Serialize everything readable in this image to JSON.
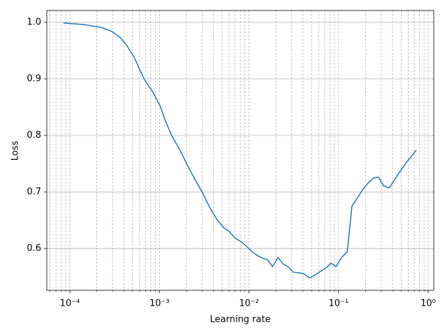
{
  "chart_data": {
    "type": "line",
    "xlabel": "Learning rate",
    "ylabel": "Loss",
    "xscale": "log",
    "x": [
      8.5e-05,
      0.000144,
      0.000225,
      0.000294,
      0.000366,
      0.000437,
      0.000524,
      0.000604,
      0.000685,
      0.000835,
      0.00102,
      0.00117,
      0.00138,
      0.00171,
      0.00212,
      0.00254,
      0.00304,
      0.00363,
      0.00435,
      0.0052,
      0.00601,
      0.00693,
      0.00815,
      0.00924,
      0.0107,
      0.0123,
      0.014,
      0.0161,
      0.0183,
      0.0211,
      0.0239,
      0.0276,
      0.0313,
      0.0361,
      0.041,
      0.0473,
      0.0546,
      0.0619,
      0.0714,
      0.0825,
      0.0935,
      0.108,
      0.125,
      0.141,
      0.163,
      0.188,
      0.214,
      0.247,
      0.28,
      0.317,
      0.366,
      0.423,
      0.488,
      0.563,
      0.65,
      0.738
    ],
    "series": [
      {
        "color": "#1f77b4",
        "values": [
          0.999,
          0.996,
          0.991,
          0.984,
          0.973,
          0.958,
          0.938,
          0.916,
          0.898,
          0.878,
          0.852,
          0.825,
          0.799,
          0.773,
          0.743,
          0.72,
          0.698,
          0.673,
          0.652,
          0.637,
          0.63,
          0.619,
          0.612,
          0.605,
          0.595,
          0.588,
          0.583,
          0.58,
          0.568,
          0.584,
          0.573,
          0.567,
          0.558,
          0.557,
          0.555,
          0.548,
          0.553,
          0.559,
          0.565,
          0.574,
          0.568,
          0.584,
          0.594,
          0.675,
          0.69,
          0.705,
          0.716,
          0.725,
          0.726,
          0.711,
          0.707,
          0.722,
          0.737,
          0.751,
          0.763,
          0.774
        ]
      }
    ],
    "xlim": [
      5.53e-05,
      1.154
    ],
    "xticks": [
      {
        "value": 0.0001,
        "label": "10⁻⁴"
      },
      {
        "value": 0.001,
        "label": "10⁻³"
      },
      {
        "value": 0.01,
        "label": "10⁻²"
      },
      {
        "value": 0.1,
        "label": "10⁻¹"
      },
      {
        "value": 1,
        "label": "10⁰"
      }
    ],
    "xminorticks": [
      6e-05,
      7e-05,
      8e-05,
      9e-05,
      0.0002,
      0.0003,
      0.0004,
      0.0005,
      0.0006,
      0.0007,
      0.0008,
      0.0009,
      0.002,
      0.003,
      0.004,
      0.005,
      0.006,
      0.007,
      0.008,
      0.009,
      0.02,
      0.03,
      0.04,
      0.05,
      0.06,
      0.07,
      0.08,
      0.09,
      0.2,
      0.3,
      0.4,
      0.5,
      0.6,
      0.7,
      0.8,
      0.9
    ],
    "ylim": [
      0.526,
      1.021
    ],
    "yticks": [
      0.6,
      0.7,
      0.8,
      0.9,
      {
        "value": 1,
        "label": "1.0"
      }
    ],
    "xgrid": true,
    "xminorgrid": true,
    "ygrid": true
  }
}
